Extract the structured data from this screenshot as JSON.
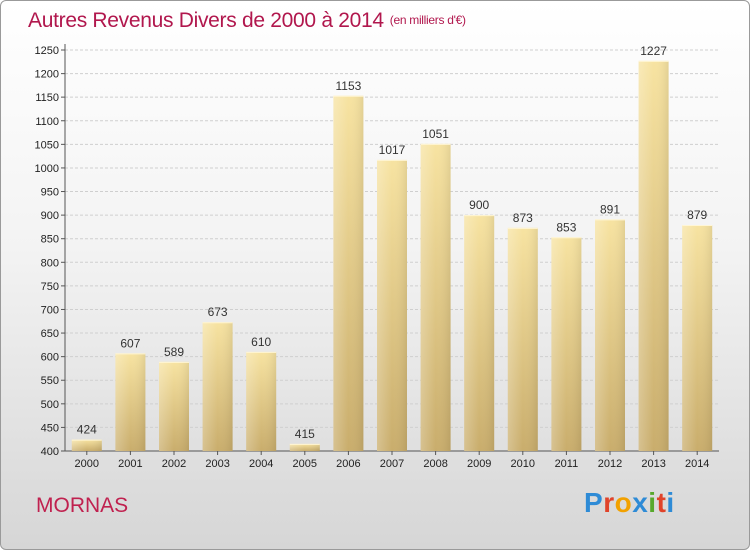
{
  "title": "Autres Revenus Divers de 2000 à 2014",
  "unit_note": "(en milliers d'€)",
  "commune": "MORNAS",
  "logo": {
    "text": "Proxiti",
    "colors": [
      "#2e8bd6",
      "#e0432a",
      "#f2a100",
      "#2e8bd6",
      "#57a82c",
      "#e0432a",
      "#2e8bd6"
    ]
  },
  "chart_data": {
    "type": "bar",
    "categories": [
      "2000",
      "2001",
      "2002",
      "2003",
      "2004",
      "2005",
      "2006",
      "2007",
      "2008",
      "2009",
      "2010",
      "2011",
      "2012",
      "2013",
      "2014"
    ],
    "values": [
      424,
      607,
      589,
      673,
      610,
      415,
      1153,
      1017,
      1051,
      900,
      873,
      853,
      891,
      1227,
      879
    ],
    "ylim": [
      400,
      1250
    ],
    "yticks": [
      400,
      450,
      500,
      550,
      600,
      650,
      700,
      750,
      800,
      850,
      900,
      950,
      1000,
      1050,
      1100,
      1150,
      1200,
      1250
    ],
    "grid": true,
    "bar_color": "#e6c97a"
  }
}
